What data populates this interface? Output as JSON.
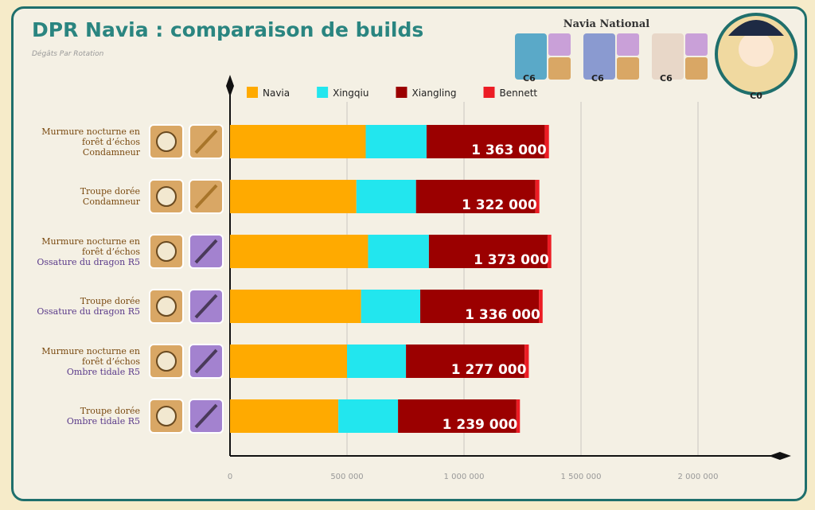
{
  "chart_data": {
    "type": "stacked-barh",
    "title": "DPR Navia : comparaison de builds",
    "subtitle": "Dégâts Par Rotation",
    "team_title": "Navia National",
    "team_constellations": [
      "C6",
      "C6",
      "C6"
    ],
    "main_constellation": "C0",
    "categories": [
      [
        "Murmure nocturne en forêt d’échos",
        "Condamneur"
      ],
      [
        "Troupe dorée",
        "Condamneur"
      ],
      [
        "Murmure nocturne en forêt d’échos",
        "Ossature du dragon R5"
      ],
      [
        "Troupe dorée",
        "Ossature du dragon R5"
      ],
      [
        "Murmure nocturne en forêt d’échos",
        "Ombre tidale R5"
      ],
      [
        "Troupe dorée",
        "Ombre tidale R5"
      ]
    ],
    "weapon_colors": [
      "#7a4a10",
      "#7a4a10",
      "#5a3a8a",
      "#5a3a8a",
      "#5a3a8a",
      "#5a3a8a"
    ],
    "series": [
      {
        "name": "Navia",
        "color": "#ffaa00",
        "values": [
          580000,
          540000,
          590000,
          560000,
          500000,
          463000
        ]
      },
      {
        "name": "Xingqiu",
        "color": "#22e6ee",
        "values": [
          260000,
          255000,
          260000,
          253000,
          252000,
          255000
        ]
      },
      {
        "name": "Xiangling",
        "color": "#9b0000",
        "values": [
          505000,
          510000,
          507000,
          507000,
          507000,
          506000
        ]
      },
      {
        "name": "Bennett",
        "color": "#ec1c24",
        "values": [
          18000,
          17000,
          16000,
          16000,
          18000,
          15000
        ]
      }
    ],
    "totals": {
      "values": [
        1363000,
        1322000,
        1373000,
        1336000,
        1277000,
        1239000
      ],
      "value_labels": [
        "1 363 000",
        "1 322 000",
        "1 373 000",
        "1 336 000",
        "1 277 000",
        "1 239 000"
      ]
    },
    "xlim": [
      0,
      2350000
    ],
    "xticks": [
      0,
      {
        "value": 500000,
        "label": "500 000"
      },
      {
        "value": 1000000,
        "label": "1 000 000"
      },
      {
        "value": 1500000,
        "label": "1 500 000"
      },
      {
        "value": 2000000,
        "label": "2 000 000"
      }
    ],
    "grid": true
  }
}
